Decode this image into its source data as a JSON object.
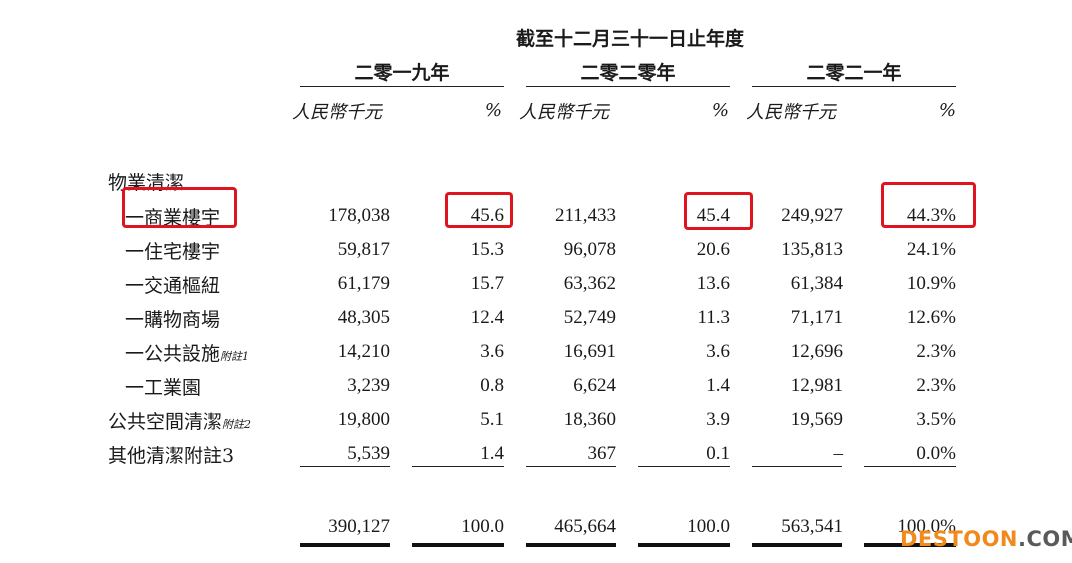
{
  "caption": "截至十二月三十一日止年度",
  "years": [
    "二零一九年",
    "二零二零年",
    "二零二一年"
  ],
  "unit_label": "人民幣千元",
  "pct_label": "%",
  "section_title": "物業清潔",
  "rows": [
    {
      "label": "一商業樓宇",
      "note": "",
      "cells": [
        "178,038",
        "45.6",
        "211,433",
        "45.4",
        "249,927",
        "44.3%"
      ]
    },
    {
      "label": "一住宅樓宇",
      "note": "",
      "cells": [
        "59,817",
        "15.3",
        "96,078",
        "20.6",
        "135,813",
        "24.1%"
      ]
    },
    {
      "label": "一交通樞紐",
      "note": "",
      "cells": [
        "61,179",
        "15.7",
        "63,362",
        "13.6",
        "61,384",
        "10.9%"
      ]
    },
    {
      "label": "一購物商場",
      "note": "",
      "cells": [
        "48,305",
        "12.4",
        "52,749",
        "11.3",
        "71,171",
        "12.6%"
      ]
    },
    {
      "label": "一公共設施",
      "note": "附註1",
      "cells": [
        "14,210",
        "3.6",
        "16,691",
        "3.6",
        "12,696",
        "2.3%"
      ]
    },
    {
      "label": "一工業園",
      "note": "",
      "cells": [
        "3,239",
        "0.8",
        "6,624",
        "1.4",
        "12,981",
        "2.3%"
      ]
    },
    {
      "label": "公共空間清潔",
      "note": "附註2",
      "cells": [
        "19,800",
        "5.1",
        "18,360",
        "3.9",
        "19,569",
        "3.5%"
      ]
    },
    {
      "label": "其他清潔附註3",
      "note": "",
      "cells": [
        "5,539",
        "1.4",
        "367",
        "0.1",
        "–",
        "0.0%"
      ]
    }
  ],
  "totals": [
    "390,127",
    "100.0",
    "465,664",
    "100.0",
    "563,541",
    "100.0%"
  ],
  "watermark": {
    "part1": "DESTOON",
    "part2": ".COM"
  },
  "colors": {
    "highlight": "#e0141e",
    "watermark_orange": "#f08a1c",
    "watermark_gray": "#5a5a5a"
  }
}
